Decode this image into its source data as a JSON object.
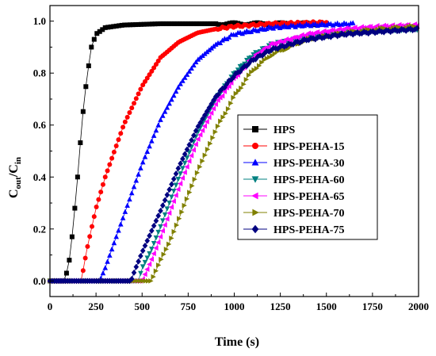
{
  "chart_data": {
    "type": "line",
    "xlabel": "Time (s)",
    "ylabel": {
      "main": "C",
      "sub1": "out",
      "mid": "/C",
      "sub2": "in"
    },
    "xlim": [
      0,
      2000
    ],
    "ylim": [
      -0.06,
      1.06
    ],
    "xticks": [
      0,
      250,
      500,
      750,
      1000,
      1250,
      1500,
      1750,
      2000
    ],
    "yticks": [
      0.0,
      0.2,
      0.4,
      0.6,
      0.8,
      1.0
    ],
    "xtick_labels": [
      "0",
      "250",
      "500",
      "750",
      "1000",
      "1250",
      "1500",
      "1750",
      "2000"
    ],
    "ytick_labels": [
      "0.0",
      "0.2",
      "0.4",
      "0.6",
      "0.8",
      "1.0"
    ],
    "grid": false,
    "legend_position": "center-right",
    "series": [
      {
        "name": "HPS",
        "color": "#000000",
        "marker": "square",
        "step": 15,
        "x_end": 1450,
        "key": [
          [
            0,
            0
          ],
          [
            75,
            0
          ],
          [
            100,
            0.05
          ],
          [
            125,
            0.2
          ],
          [
            150,
            0.4
          ],
          [
            175,
            0.62
          ],
          [
            200,
            0.78
          ],
          [
            225,
            0.9
          ],
          [
            250,
            0.95
          ],
          [
            300,
            0.975
          ],
          [
            400,
            0.985
          ],
          [
            600,
            0.99
          ],
          [
            1450,
            0.99
          ]
        ]
      },
      {
        "name": "HPS-PEHA-15",
        "color": "#ff0000",
        "marker": "circle",
        "step": 12,
        "x_end": 1500,
        "key": [
          [
            0,
            0
          ],
          [
            170,
            0
          ],
          [
            200,
            0.12
          ],
          [
            250,
            0.28
          ],
          [
            300,
            0.4
          ],
          [
            400,
            0.6
          ],
          [
            500,
            0.75
          ],
          [
            600,
            0.86
          ],
          [
            700,
            0.92
          ],
          [
            800,
            0.955
          ],
          [
            900,
            0.97
          ],
          [
            1000,
            0.98
          ],
          [
            1200,
            0.99
          ],
          [
            1500,
            0.995
          ]
        ]
      },
      {
        "name": "HPS-PEHA-30",
        "color": "#0000ff",
        "marker": "triangle-up",
        "step": 12,
        "x_end": 1650,
        "key": [
          [
            0,
            0
          ],
          [
            270,
            0
          ],
          [
            300,
            0.05
          ],
          [
            350,
            0.15
          ],
          [
            400,
            0.25
          ],
          [
            500,
            0.45
          ],
          [
            600,
            0.62
          ],
          [
            700,
            0.75
          ],
          [
            800,
            0.85
          ],
          [
            900,
            0.91
          ],
          [
            1000,
            0.95
          ],
          [
            1200,
            0.975
          ],
          [
            1400,
            0.985
          ],
          [
            1650,
            0.99
          ]
        ]
      },
      {
        "name": "HPS-PEHA-60",
        "color": "#008080",
        "marker": "triangle-down",
        "step": 12,
        "x_end": 2000,
        "key": [
          [
            0,
            0
          ],
          [
            480,
            0
          ],
          [
            500,
            0.05
          ],
          [
            550,
            0.12
          ],
          [
            600,
            0.21
          ],
          [
            700,
            0.4
          ],
          [
            800,
            0.57
          ],
          [
            900,
            0.7
          ],
          [
            1000,
            0.8
          ],
          [
            1100,
            0.87
          ],
          [
            1200,
            0.91
          ],
          [
            1400,
            0.94
          ],
          [
            1600,
            0.955
          ],
          [
            1800,
            0.965
          ],
          [
            2000,
            0.97
          ]
        ]
      },
      {
        "name": "HPS-PEHA-65",
        "color": "#ff00ff",
        "marker": "triangle-left",
        "step": 12,
        "x_end": 2000,
        "key": [
          [
            0,
            0
          ],
          [
            500,
            0
          ],
          [
            550,
            0.08
          ],
          [
            600,
            0.17
          ],
          [
            700,
            0.36
          ],
          [
            800,
            0.54
          ],
          [
            900,
            0.68
          ],
          [
            1000,
            0.78
          ],
          [
            1100,
            0.86
          ],
          [
            1200,
            0.91
          ],
          [
            1400,
            0.95
          ],
          [
            1600,
            0.97
          ],
          [
            1800,
            0.98
          ],
          [
            2000,
            0.985
          ]
        ]
      },
      {
        "name": "HPS-PEHA-70",
        "color": "#808000",
        "marker": "triangle-right",
        "step": 14,
        "x_end": 2000,
        "key": [
          [
            0,
            0
          ],
          [
            550,
            0
          ],
          [
            600,
            0.08
          ],
          [
            650,
            0.15
          ],
          [
            700,
            0.24
          ],
          [
            800,
            0.42
          ],
          [
            900,
            0.58
          ],
          [
            1000,
            0.71
          ],
          [
            1100,
            0.81
          ],
          [
            1200,
            0.87
          ],
          [
            1400,
            0.93
          ],
          [
            1600,
            0.955
          ],
          [
            1800,
            0.97
          ],
          [
            2000,
            0.98
          ]
        ]
      },
      {
        "name": "HPS-PEHA-75",
        "color": "#000080",
        "marker": "diamond",
        "step": 12,
        "x_end": 2000,
        "key": [
          [
            0,
            0
          ],
          [
            440,
            0
          ],
          [
            460,
            0.04
          ],
          [
            500,
            0.11
          ],
          [
            550,
            0.19
          ],
          [
            600,
            0.27
          ],
          [
            700,
            0.44
          ],
          [
            800,
            0.59
          ],
          [
            900,
            0.71
          ],
          [
            1000,
            0.79
          ],
          [
            1100,
            0.85
          ],
          [
            1200,
            0.89
          ],
          [
            1400,
            0.93
          ],
          [
            1600,
            0.95
          ],
          [
            1800,
            0.96
          ],
          [
            2000,
            0.97
          ]
        ]
      }
    ]
  }
}
